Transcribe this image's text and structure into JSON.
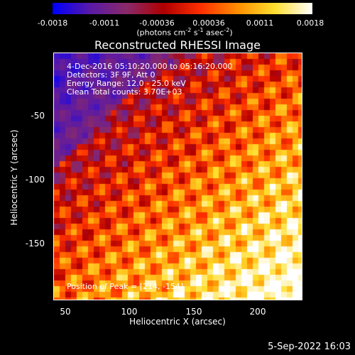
{
  "colorbar": {
    "ticks": [
      "-0.0018",
      "-0.0011",
      "-0.00036",
      "0.00036",
      "0.0011",
      "0.0018"
    ],
    "units_prefix": "(photons cm",
    "units_sup1": "-2",
    "units_mid1": " s",
    "units_sup2": "-1",
    "units_mid2": " asec",
    "units_sup3": "-2",
    "units_suffix": ")"
  },
  "title": "Reconstructed RHESSI Image",
  "info": {
    "line1": "4-Dec-2016 05:10:20.000 to 05:16:20.000",
    "line2": "Detectors: 3F 9F, Att 0",
    "line3": "Energy Range: 12.0 - 25.0 keV",
    "line4": "Clean     Total counts: 3.70E+03"
  },
  "position_label": "Position of Peak = [214, -154]",
  "footer_date": "5-Sep-2022 16:03",
  "chart_data": {
    "type": "heatmap",
    "title": "Reconstructed RHESSI Image",
    "xlabel": "Heliocentric X (arcsec)",
    "ylabel": "Heliocentric Y (arcsec)",
    "xlim": [
      40,
      235
    ],
    "ylim": [
      -192,
      -20
    ],
    "x_ticks": [
      "50",
      "100",
      "150",
      "200"
    ],
    "y_ticks": [
      "-50",
      "-100",
      "-150"
    ],
    "x_tick_values": [
      50,
      100,
      150,
      200
    ],
    "y_tick_values": [
      -50,
      -100,
      -150
    ],
    "colorbar_range": [
      -0.0018,
      0.0018
    ],
    "peak": [
      214,
      -154
    ],
    "colormap": [
      "#0000ff",
      "#5a1aa8",
      "#8a2a6a",
      "#b00000",
      "#ff3000",
      "#ff9000",
      "#ffe030",
      "#ffffff"
    ]
  }
}
